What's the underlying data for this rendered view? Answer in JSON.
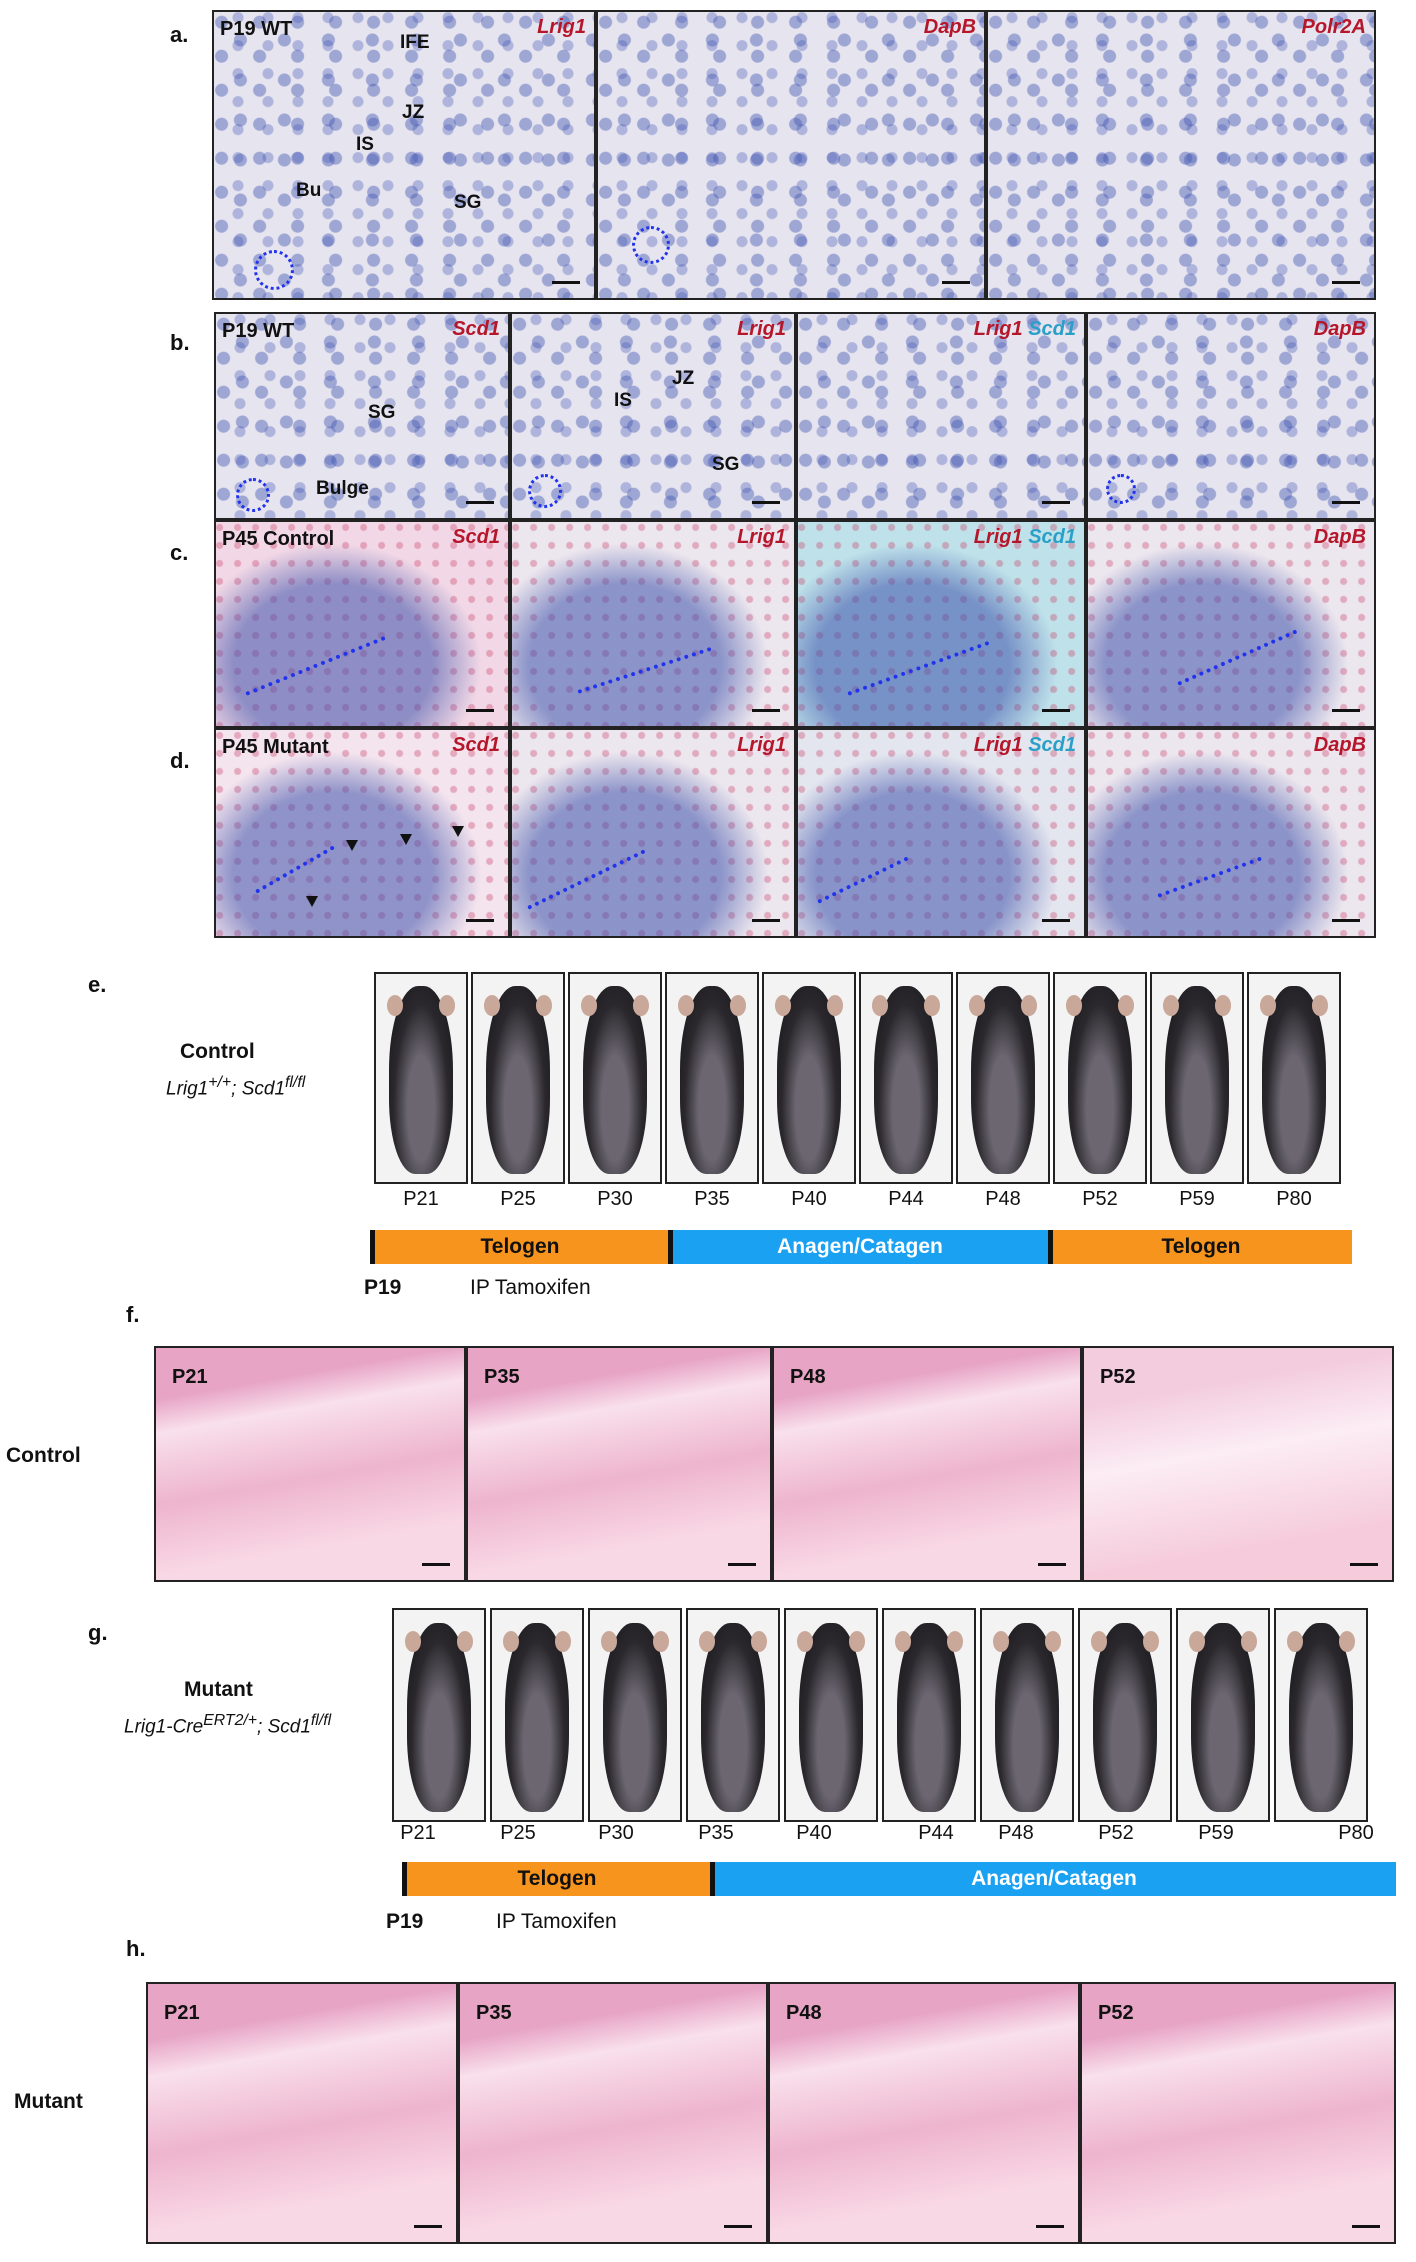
{
  "a": {
    "letter": "a.",
    "panels": [
      {
        "title": "P19 WT",
        "gene": "Lrig1",
        "structs": [
          "IFE",
          "JZ",
          "IS",
          "Bu",
          "SG"
        ]
      },
      {
        "title": "",
        "gene": "DapB"
      },
      {
        "title": "",
        "gene": "Polr2A"
      }
    ]
  },
  "b": {
    "letter": "b.",
    "panels": [
      {
        "title": "P19 WT",
        "gene": "Scd1",
        "structs": [
          "SG",
          "Bulge"
        ]
      },
      {
        "title": "",
        "gene": "Lrig1",
        "structs": [
          "JZ",
          "IS",
          "SG"
        ]
      },
      {
        "title": "",
        "gene1": "Lrig1",
        "gene2": "Scd1"
      },
      {
        "title": "",
        "gene": "DapB"
      }
    ]
  },
  "c": {
    "letter": "c.",
    "panels": [
      {
        "title": "P45 Control",
        "gene": "Scd1"
      },
      {
        "title": "",
        "gene": "Lrig1"
      },
      {
        "title": "",
        "gene1": "Lrig1",
        "gene2": "Scd1"
      },
      {
        "title": "",
        "gene": "DapB"
      }
    ]
  },
  "d": {
    "letter": "d.",
    "panels": [
      {
        "title": "P45 Mutant",
        "gene": "Scd1"
      },
      {
        "title": "",
        "gene": "Lrig1"
      },
      {
        "title": "",
        "gene1": "Lrig1",
        "gene2": "Scd1"
      },
      {
        "title": "",
        "gene": "DapB"
      }
    ]
  },
  "e": {
    "letter": "e.",
    "group": "Control",
    "genotype_html": "Lrig1<sup>+/+</sup>; Scd1<sup>fl/fl</sup>",
    "days": [
      "P21",
      "P25",
      "P30",
      "P35",
      "P40",
      "P44",
      "P48",
      "P52",
      "P59",
      "P80"
    ],
    "bars": [
      {
        "label": "Telogen",
        "color": "#f7941d"
      },
      {
        "label": "Anagen/Catagen",
        "color": "#1ba1f2"
      },
      {
        "label": "Telogen",
        "color": "#f7941d"
      }
    ],
    "start": "P19",
    "treatment": "IP Tamoxifen"
  },
  "f": {
    "letter": "f.",
    "row_label": "Control",
    "panels": [
      "P21",
      "P35",
      "P48",
      "P52"
    ]
  },
  "g": {
    "letter": "g.",
    "group": "Mutant",
    "genotype_html": "Lrig1-Cre<sup>ERT2/+</sup>; Scd1<sup>fl/fl</sup>",
    "days": [
      "P21",
      "P25",
      "P30",
      "P35",
      "P40",
      "P44",
      "P48",
      "P52",
      "P59",
      "P80"
    ],
    "bars": [
      {
        "label": "Telogen",
        "color": "#f7941d"
      },
      {
        "label": "Anagen/Catagen",
        "color": "#1ba1f2"
      }
    ],
    "start": "P19",
    "treatment": "IP Tamoxifen"
  },
  "h": {
    "letter": "h.",
    "row_label": "Mutant",
    "panels": [
      "P21",
      "P35",
      "P48",
      "P52"
    ]
  }
}
